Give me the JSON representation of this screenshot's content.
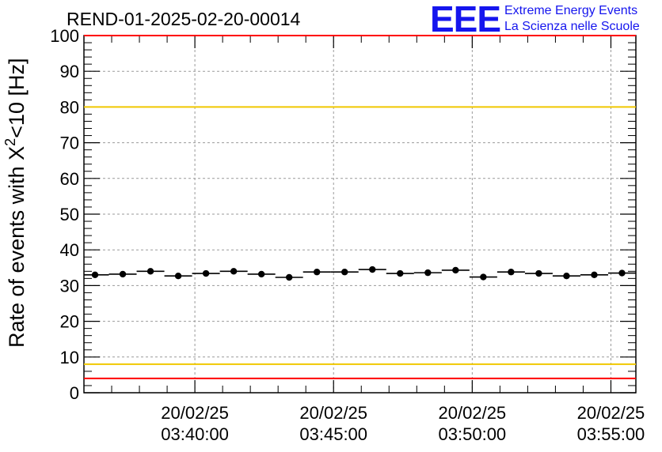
{
  "chart_data": {
    "type": "scatter",
    "title": "REND-01-2025-02-20-00014",
    "ylabel_prefix": "Rate of events with X",
    "ylabel_sup": "2",
    "ylabel_suffix": "<10 [Hz]",
    "xlabel": "",
    "ylim": [
      0,
      100
    ],
    "yticks": [
      0,
      10,
      20,
      30,
      40,
      50,
      60,
      70,
      80,
      90,
      100
    ],
    "xlim_minutes": [
      36.0,
      55.9
    ],
    "xticks": [
      {
        "minute": 40,
        "date": "20/02/25",
        "time": "03:40:00"
      },
      {
        "minute": 45,
        "date": "20/02/25",
        "time": "03:45:00"
      },
      {
        "minute": 50,
        "date": "20/02/25",
        "time": "03:50:00"
      },
      {
        "minute": 55,
        "date": "20/02/25",
        "time": "03:55:00"
      }
    ],
    "grid": true,
    "bin_width_minutes": 1.0,
    "series": [
      {
        "name": "rate",
        "x_minutes": [
          36.4,
          37.4,
          38.4,
          39.4,
          40.4,
          41.4,
          42.4,
          43.4,
          44.4,
          45.4,
          46.4,
          47.4,
          48.4,
          49.4,
          50.4,
          51.4,
          52.4,
          53.4,
          54.4,
          55.4
        ],
        "values": [
          33.0,
          33.2,
          34.0,
          32.7,
          33.4,
          34.0,
          33.2,
          32.3,
          33.8,
          33.8,
          34.5,
          33.4,
          33.6,
          34.3,
          32.4,
          33.8,
          33.4,
          32.7,
          33.0,
          33.5
        ]
      }
    ],
    "reference_lines": [
      {
        "name": "upper-red-limit",
        "value": 100,
        "color": "#ff0000"
      },
      {
        "name": "upper-yellow-limit",
        "value": 80,
        "color": "#f0c800"
      },
      {
        "name": "lower-yellow-limit",
        "value": 8,
        "color": "#f0c800"
      },
      {
        "name": "lower-red-limit",
        "value": 4,
        "color": "#ff0000"
      }
    ]
  },
  "logo": {
    "mark": "EEE",
    "line1": "Extreme Energy Events",
    "line2": "La Scienza nelle Scuole"
  }
}
